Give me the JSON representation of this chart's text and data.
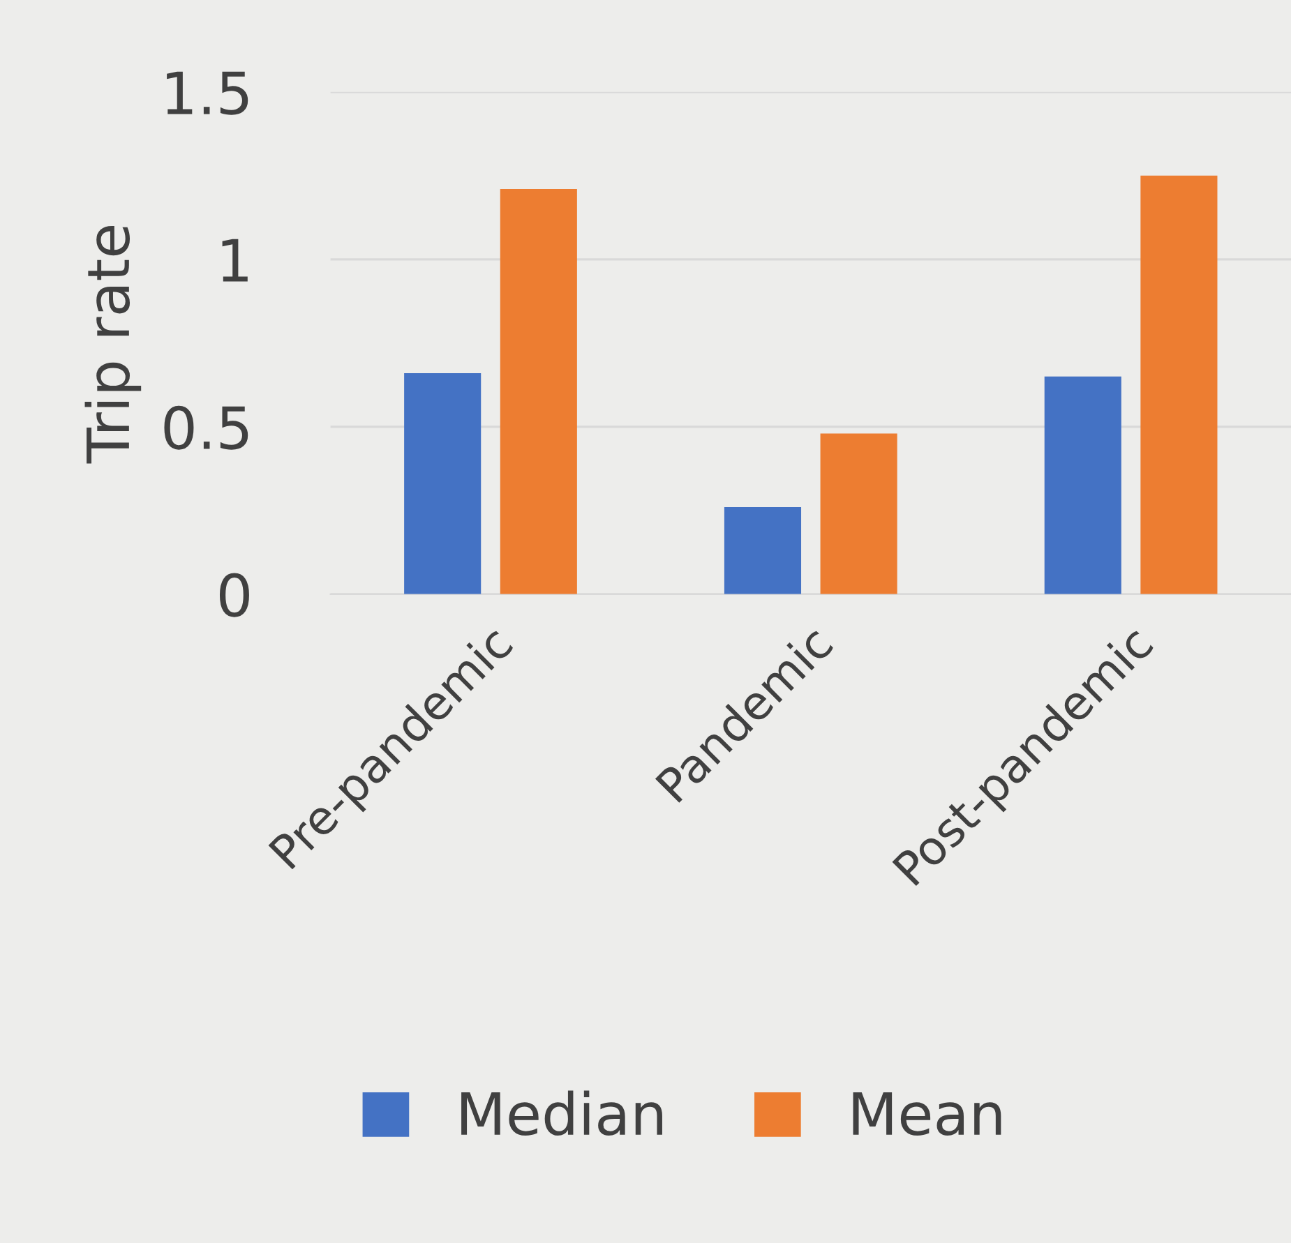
{
  "chart_data": {
    "type": "bar",
    "ylabel": "Trip rate",
    "categories": [
      "Pre-pandemic",
      "Pandemic",
      "Post-pandemic"
    ],
    "series": [
      {
        "name": "Median",
        "color": "#4472c4",
        "values": [
          0.66,
          0.26,
          0.65
        ]
      },
      {
        "name": "Mean",
        "color": "#ed7d31",
        "values": [
          1.21,
          0.48,
          1.25
        ]
      }
    ],
    "ylim": [
      0,
      1.5
    ],
    "yticks": [
      0,
      0.5,
      1,
      1.5
    ],
    "grid": "y",
    "legend": "bottom"
  }
}
